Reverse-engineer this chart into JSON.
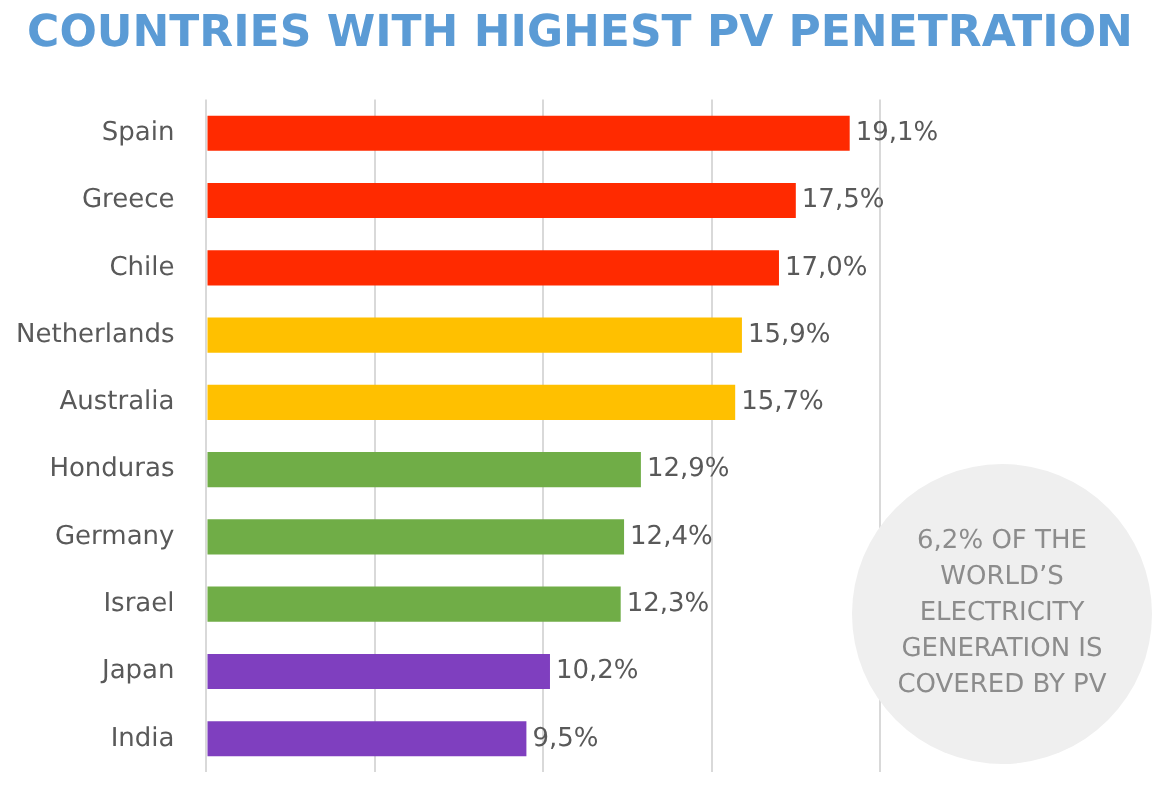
{
  "chart_data": {
    "type": "bar",
    "orientation": "horizontal",
    "title": "COUNTRIES WITH HIGHEST PV PENETRATION",
    "categories": [
      "Spain",
      "Greece",
      "Chile",
      "Netherlands",
      "Australia",
      "Honduras",
      "Germany",
      "Israel",
      "Japan",
      "India"
    ],
    "values": [
      19.1,
      17.5,
      17.0,
      15.9,
      15.7,
      12.9,
      12.4,
      12.3,
      10.2,
      9.5
    ],
    "colors": [
      "#ff2a00",
      "#ff2a00",
      "#ff2a00",
      "#ffc000",
      "#ffc000",
      "#70ad47",
      "#70ad47",
      "#70ad47",
      "#7f3fbf",
      "#7f3fbf"
    ],
    "value_labels": [
      "19,1%",
      "17,5%",
      "17,0%",
      "15,9%",
      "15,7%",
      "12,9%",
      "12,4%",
      "12,3%",
      "10,2%",
      "9,5%"
    ],
    "xlim": [
      0,
      20
    ],
    "xticks": [
      {
        "value": 0,
        "label": null
      },
      {
        "value": 5,
        "label": null
      },
      {
        "value": 10,
        "label": null
      },
      {
        "value": 15,
        "label": null
      },
      {
        "value": 20,
        "label": null
      }
    ],
    "tick_labels": "y",
    "grid": "x",
    "annotations": [
      "6,2% OF THE WORLD’S ELECTRICITY GENERATION IS COVERED BY PV"
    ]
  }
}
